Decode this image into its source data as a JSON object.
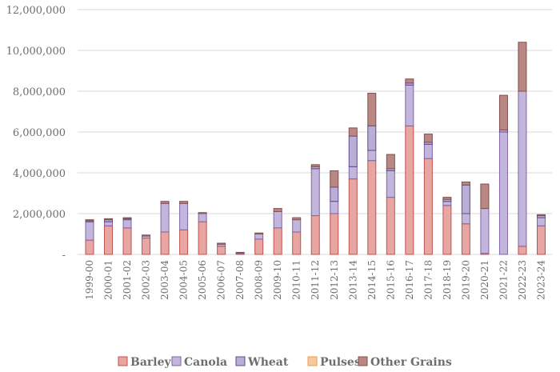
{
  "chart_data": {
    "type": "bar",
    "stacked": true,
    "categories": [
      "1999-00",
      "2000-01",
      "2001-02",
      "2002-03",
      "2003-04",
      "2004-05",
      "2005-06",
      "2006-07",
      "2007-08",
      "2008-09",
      "2009-10",
      "2010-11",
      "2011-12",
      "2012-13",
      "2013-14",
      "2014-15",
      "2015-16",
      "2016-17",
      "2017-18",
      "2018-19",
      "2019-20",
      "2020-21",
      "2021-22",
      "2022-23",
      "2023-24"
    ],
    "ylim": [
      0,
      12000000
    ],
    "yticks": [
      0,
      2000000,
      4000000,
      6000000,
      8000000,
      10000000,
      12000000
    ],
    "ytick_labels": [
      "-",
      "2,000,000",
      "4,000,000",
      "6,000,000",
      "8,000,000",
      "10,000,000",
      "12,000,000"
    ],
    "grid": true,
    "legend_position": "bottom",
    "series": [
      {
        "name": "Barley",
        "color": "#e8a6a2",
        "stroke": "#c0504d",
        "values": [
          700000,
          1400000,
          1300000,
          800000,
          1100000,
          1200000,
          1600000,
          400000,
          50000,
          750000,
          1300000,
          1100000,
          1900000,
          2000000,
          3700000,
          4600000,
          2800000,
          6300000,
          4700000,
          2400000,
          1500000,
          50000,
          0,
          400000,
          1400000
        ]
      },
      {
        "name": "Canola",
        "color": "#c2b6dd",
        "stroke": "#8064a2",
        "values": [
          900000,
          200000,
          400000,
          100000,
          1400000,
          1300000,
          400000,
          100000,
          30000,
          250000,
          800000,
          600000,
          2300000,
          600000,
          600000,
          500000,
          1300000,
          2000000,
          700000,
          200000,
          500000,
          2200000,
          6000000,
          7600000,
          400000
        ]
      },
      {
        "name": "Wheat",
        "color": "#b8aed6",
        "stroke": "#5f4b8b",
        "values": [
          50000,
          100000,
          50000,
          0,
          0,
          0,
          0,
          0,
          0,
          0,
          0,
          0,
          100000,
          700000,
          1500000,
          1200000,
          100000,
          100000,
          100000,
          100000,
          1400000,
          0,
          100000,
          0,
          100000
        ]
      },
      {
        "name": "Pulses",
        "color": "#f5c8a0",
        "stroke": "#f79646",
        "values": [
          0,
          0,
          0,
          0,
          0,
          0,
          0,
          0,
          0,
          0,
          0,
          0,
          0,
          0,
          0,
          0,
          0,
          0,
          0,
          0,
          0,
          0,
          0,
          0,
          0
        ]
      },
      {
        "name": "Other Grains",
        "color": "#b98883",
        "stroke": "#7f4f4f",
        "values": [
          50000,
          50000,
          50000,
          50000,
          100000,
          100000,
          50000,
          50000,
          20000,
          50000,
          150000,
          100000,
          100000,
          800000,
          400000,
          1600000,
          700000,
          200000,
          400000,
          100000,
          150000,
          1200000,
          1700000,
          2400000,
          50000
        ]
      }
    ]
  }
}
